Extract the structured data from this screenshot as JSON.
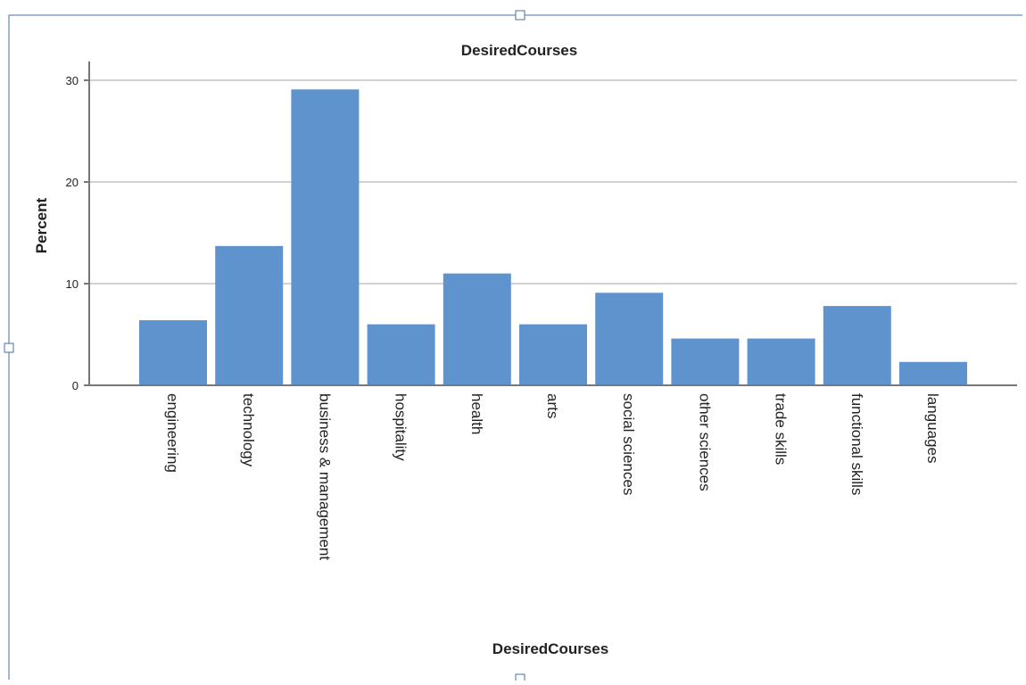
{
  "colors": {
    "bar": "#5f93cd",
    "grid": "#d2d2d2",
    "axis": "#777777",
    "text": "#222222",
    "frame": "#4a6fa5"
  },
  "chart_data": {
    "type": "bar",
    "title": "DesiredCourses",
    "xlabel": "DesiredCourses",
    "ylabel": "Percent",
    "categories": [
      "engineering",
      "technology",
      "business & management",
      "hospitality",
      "health",
      "arts",
      "social sciences",
      "other sciences",
      "trade skills",
      "functional skills",
      "languages"
    ],
    "values": [
      6.4,
      13.7,
      29.1,
      6.0,
      11.0,
      6.0,
      9.1,
      4.6,
      4.6,
      7.8,
      2.3
    ],
    "yticks": [
      0,
      10,
      20,
      30
    ],
    "ylim": [
      0,
      31.5
    ],
    "grid": true,
    "legend": false
  }
}
